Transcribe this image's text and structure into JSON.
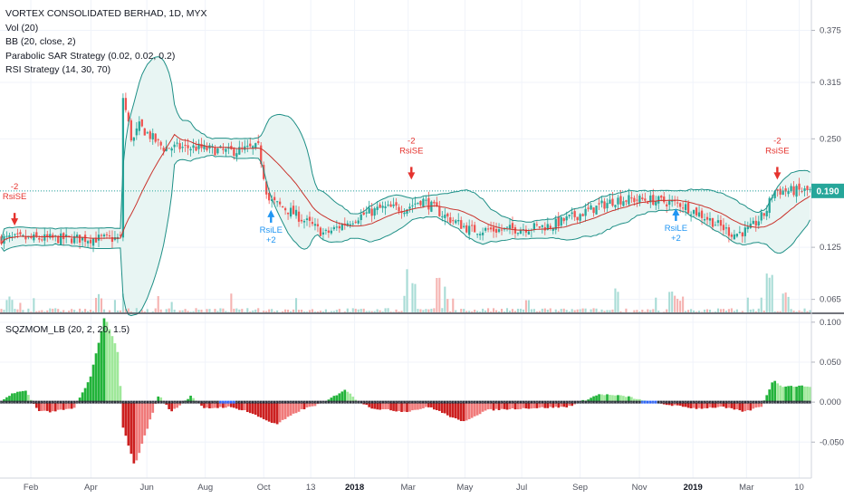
{
  "legend": {
    "title": "VORTEX CONSOLIDATED BERHAD, 1D, MYX",
    "vol": "Vol (20)",
    "bb": "BB (20, close, 2)",
    "sar": "Parabolic SAR Strategy (0.02, 0.02, 0.2)",
    "rsi": "RSI Strategy (14, 30, 70)"
  },
  "subpane": {
    "title": "SQZMOM_LB (20, 2, 20, 1.5)"
  },
  "colors": {
    "up": "#26a69a",
    "down": "#ef5350",
    "bb": "#1e8f86",
    "bb_fill": "#e8f5f3",
    "basis": "#c9332c",
    "price_line": "#26a69a",
    "mom_green_strong": "#22b33a",
    "mom_green_light": "#9fe89a",
    "mom_red_strong": "#cc2020",
    "mom_red_light": "#f07a7a",
    "sell_signal": "#e5332e",
    "buy_signal": "#2196f3"
  },
  "chart_data": [
    {
      "type": "candlestick",
      "name": "main-price-pane",
      "yticks": [
        "0.375",
        "0.315",
        "0.250",
        "0.190",
        "0.125",
        "0.065"
      ],
      "ylim": [
        0.05,
        0.41
      ],
      "current_price": "0.190",
      "xticks": [
        "Feb",
        "Apr",
        "Jun",
        "Aug",
        "Oct",
        "13",
        "2018",
        "Mar",
        "May",
        "Jul",
        "Sep",
        "Nov",
        "2019",
        "Mar",
        "10"
      ],
      "bold_xticks": [
        "2018",
        "2019"
      ],
      "price_path": [
        [
          0.15,
          0.135
        ],
        [
          0.02,
          0.14
        ],
        [
          0.035,
          0.15
        ],
        [
          0.08,
          0.148
        ],
        [
          0.1,
          0.175
        ],
        [
          0.107,
          0.25
        ],
        [
          0.115,
          0.33
        ],
        [
          0.125,
          0.38
        ],
        [
          0.135,
          0.345
        ],
        [
          0.15,
          0.3
        ],
        [
          0.162,
          0.245
        ],
        [
          0.17,
          0.265
        ],
        [
          0.2,
          0.24
        ],
        [
          0.24,
          0.24
        ],
        [
          0.28,
          0.235
        ],
        [
          0.318,
          0.24
        ],
        [
          0.33,
          0.18
        ],
        [
          0.36,
          0.165
        ],
        [
          0.4,
          0.14
        ],
        [
          0.44,
          0.16
        ],
        [
          0.47,
          0.17
        ],
        [
          0.5,
          0.17
        ],
        [
          0.52,
          0.18
        ],
        [
          0.55,
          0.16
        ],
        [
          0.58,
          0.145
        ],
        [
          0.62,
          0.145
        ],
        [
          0.68,
          0.15
        ],
        [
          0.72,
          0.165
        ],
        [
          0.76,
          0.18
        ],
        [
          0.8,
          0.18
        ],
        [
          0.84,
          0.175
        ],
        [
          0.87,
          0.16
        ],
        [
          0.905,
          0.14
        ],
        [
          0.925,
          0.145
        ],
        [
          0.945,
          0.165
        ],
        [
          0.955,
          0.19
        ]
      ],
      "volume_spikes": [
        [
          0.01,
          0.3
        ],
        [
          0.12,
          0.35
        ],
        [
          0.5,
          0.9
        ],
        [
          0.51,
          0.7
        ],
        [
          0.54,
          0.8
        ],
        [
          0.55,
          0.65
        ],
        [
          0.65,
          0.25
        ],
        [
          0.76,
          0.45
        ],
        [
          0.83,
          0.4
        ],
        [
          0.84,
          0.3
        ],
        [
          0.95,
          0.85
        ],
        [
          0.97,
          0.4
        ]
      ],
      "signals": [
        {
          "label": "RsiSE",
          "qty": "-2",
          "dir": "sell",
          "x": 0.018,
          "price": 0.15
        },
        {
          "label": "RsiLE",
          "qty": "+2",
          "dir": "buy",
          "x": 0.334,
          "price": 0.168
        },
        {
          "label": "RsiSE",
          "qty": "-2",
          "dir": "sell",
          "x": 0.507,
          "price": 0.203
        },
        {
          "label": "RsiLE",
          "qty": "+2",
          "dir": "buy",
          "x": 0.833,
          "price": 0.17
        },
        {
          "label": "RsiSE",
          "qty": "-2",
          "dir": "sell",
          "x": 0.958,
          "price": 0.203
        }
      ]
    },
    {
      "type": "histogram",
      "name": "squeeze-momentum",
      "yticks": [
        "0.100",
        "0.050",
        "0.000",
        "-0.050"
      ],
      "ylim": [
        -0.095,
        0.11
      ],
      "momentum_path": [
        [
          0.0,
          0.0
        ],
        [
          0.015,
          0.012
        ],
        [
          0.03,
          0.014
        ],
        [
          0.045,
          -0.01
        ],
        [
          0.06,
          -0.012
        ],
        [
          0.09,
          -0.008
        ],
        [
          0.11,
          0.03
        ],
        [
          0.128,
          0.108
        ],
        [
          0.145,
          0.06
        ],
        [
          0.15,
          -0.03
        ],
        [
          0.165,
          -0.08
        ],
        [
          0.178,
          -0.04
        ],
        [
          0.195,
          0.01
        ],
        [
          0.21,
          -0.012
        ],
        [
          0.235,
          0.008
        ],
        [
          0.25,
          -0.008
        ],
        [
          0.28,
          -0.006
        ],
        [
          0.3,
          -0.01
        ],
        [
          0.34,
          -0.028
        ],
        [
          0.37,
          -0.01
        ],
        [
          0.4,
          0.0
        ],
        [
          0.425,
          0.016
        ],
        [
          0.44,
          0.002
        ],
        [
          0.46,
          -0.008
        ],
        [
          0.5,
          -0.012
        ],
        [
          0.53,
          -0.006
        ],
        [
          0.57,
          -0.025
        ],
        [
          0.6,
          -0.01
        ],
        [
          0.64,
          -0.008
        ],
        [
          0.7,
          -0.006
        ],
        [
          0.74,
          0.01
        ],
        [
          0.775,
          0.007
        ],
        [
          0.8,
          0.0
        ],
        [
          0.83,
          -0.004
        ],
        [
          0.86,
          -0.008
        ],
        [
          0.89,
          -0.006
        ],
        [
          0.92,
          -0.012
        ],
        [
          0.94,
          -0.005
        ],
        [
          0.955,
          0.028
        ],
        [
          0.965,
          0.02
        ]
      ]
    }
  ]
}
